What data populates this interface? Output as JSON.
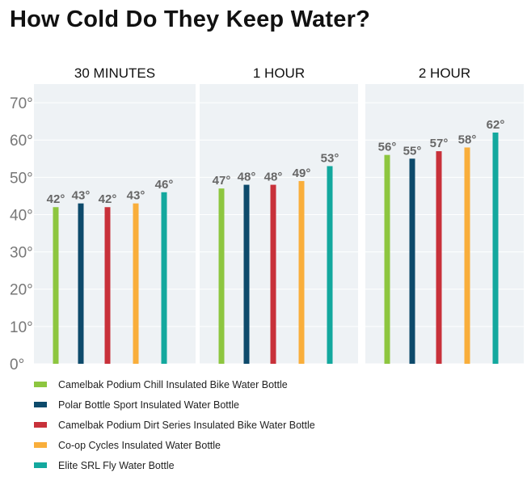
{
  "chart_data": {
    "type": "bar",
    "title": "How Cold Do They Keep Water?",
    "panels": [
      "30 MINUTES",
      "1 HOUR",
      "2 HOUR"
    ],
    "ylim": [
      0,
      75
    ],
    "yticks": [
      0,
      10,
      20,
      30,
      40,
      50,
      60,
      70
    ],
    "ytick_labels": [
      "0°",
      "10°",
      "20°",
      "30°",
      "40°",
      "50°",
      "60°",
      "70°"
    ],
    "grid": true,
    "legend_position": "bottom",
    "series": [
      {
        "name": "Camelbak Podium Chill Insulated Bike Water Bottle",
        "color": "#8dc63f",
        "values": [
          42,
          47,
          56
        ],
        "labels": [
          "42°",
          "47°",
          "56°"
        ]
      },
      {
        "name": "Polar Bottle Sport Insulated Water Bottle",
        "color": "#0d4a6b",
        "values": [
          43,
          48,
          55
        ],
        "labels": [
          "43°",
          "48°",
          "55°"
        ]
      },
      {
        "name": "Camelbak Podium Dirt Series Insulated Bike Water Bottle",
        "color": "#c8313a",
        "values": [
          42,
          48,
          57
        ],
        "labels": [
          "42°",
          "48°",
          "57°"
        ]
      },
      {
        "name": "Co-op Cycles Insulated Water Bottle",
        "color": "#f9ae3b",
        "values": [
          43,
          49,
          58
        ],
        "labels": [
          "43°",
          "49°",
          "58°"
        ]
      },
      {
        "name": " Elite SRL Fly Water Bottle",
        "color": "#13a89e",
        "values": [
          46,
          53,
          62
        ],
        "labels": [
          "46°",
          "53°",
          "62°"
        ]
      }
    ]
  }
}
